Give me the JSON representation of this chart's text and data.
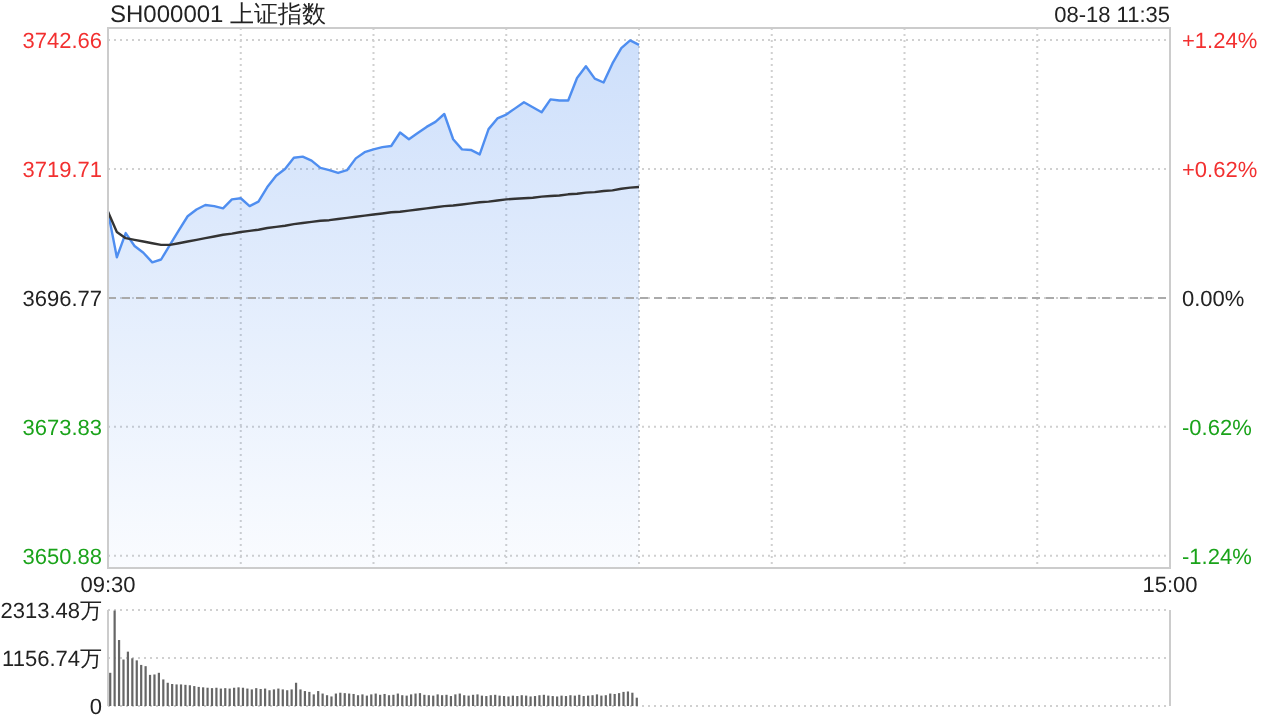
{
  "chart_data": [
    {
      "type": "area",
      "title": "SH000001 上证指数",
      "annotations": [
        "08-18 11:35"
      ],
      "categories": [
        "09:30",
        null,
        null,
        null,
        null,
        null,
        null,
        null,
        null,
        null,
        null,
        null,
        null,
        null,
        null,
        null,
        null,
        null,
        null,
        null,
        null,
        null,
        null,
        null,
        null,
        null,
        null,
        null,
        null,
        null,
        null,
        null,
        null,
        null,
        null,
        null,
        null,
        null,
        null,
        null,
        null,
        null,
        null,
        null,
        null,
        null,
        null,
        null,
        null,
        null,
        null,
        null,
        null,
        null,
        null,
        null,
        null,
        null,
        null,
        null,
        null,
        null,
        null,
        null,
        null,
        null,
        null,
        null,
        null,
        null,
        null,
        null,
        null,
        null,
        null,
        null,
        null,
        null,
        null,
        null,
        null,
        null,
        null,
        null,
        null,
        null,
        null,
        null,
        null,
        null,
        null,
        null,
        null,
        null,
        null,
        null,
        null,
        null,
        null,
        null,
        null,
        null,
        null,
        null,
        null,
        null,
        null,
        null,
        null,
        null,
        null,
        null,
        null,
        null,
        null,
        null,
        null,
        null,
        null,
        null,
        "15:00"
      ],
      "ylim": [
        3648.7,
        3744.8
      ],
      "yticks": [
        3650.88,
        3673.83,
        3696.77,
        3719.71,
        3742.66
      ],
      "y2lim": [
        -1.3,
        1.3
      ],
      "y2ticks": [
        {
          "value": -1.24,
          "label": "-1.24%"
        },
        {
          "value": -0.62,
          "label": "-0.62%"
        },
        {
          "value": 0,
          "label": "0.00%"
        },
        {
          "value": 0.62,
          "label": "+0.62%"
        },
        {
          "value": 1.24,
          "label": "+1.24%"
        }
      ],
      "grid": true,
      "marker": "none",
      "line_style": "solid",
      "ref_lines": [
        {
          "axis": "y",
          "value": 3696.77,
          "label": null,
          "color": "#aaaaaa",
          "line_style": "dashed"
        }
      ],
      "series": [
        {
          "color": "#4f8ef0",
          "values": [
            3712.1,
            3704,
            3708.3,
            3706,
            3704.8,
            3703.1,
            3703.6,
            3706.2,
            3708.8,
            3711.3,
            3712.5,
            3713.3,
            3713.1,
            3712.7,
            3714.3,
            3714.5,
            3713.1,
            3713.9,
            3716.5,
            3718.5,
            3719.7,
            3721.7,
            3721.9,
            3721.2,
            3719.9,
            3719.5,
            3719,
            3719.5,
            3721.6,
            3722.7,
            3723.2,
            3723.6,
            3723.8,
            3726.2,
            3725,
            3726.1,
            3727.2,
            3728.1,
            3729.5,
            3725,
            3723.2,
            3723.1,
            3722.3,
            3726.8,
            3728.7,
            3729.4,
            3730.5,
            3731.6,
            3730.7,
            3729.8,
            3732.1,
            3731.9,
            3731.9,
            3735.9,
            3738,
            3735.8,
            3735.1,
            3738.5,
            3741.2,
            3742.6,
            3741.8,
            null,
            null,
            null,
            null,
            null,
            null,
            null,
            null,
            null,
            null,
            null,
            null,
            null,
            null,
            null,
            null,
            null,
            null,
            null,
            null,
            null,
            null,
            null,
            null,
            null,
            null,
            null,
            null,
            null,
            null,
            null,
            null,
            null,
            null,
            null,
            null,
            null,
            null,
            null,
            null,
            null,
            null,
            null,
            null,
            null,
            null,
            null,
            null,
            null,
            null,
            null,
            null,
            null,
            null,
            null,
            null,
            null,
            null,
            null,
            null
          ]
        },
        {
          "type": "line",
          "color": "#333333",
          "values": [
            3712.1,
            3708.5,
            3707.4,
            3707.1,
            3706.8,
            3706.5,
            3706.2,
            3706.2,
            3706.5,
            3706.8,
            3707.1,
            3707.4,
            3707.7,
            3708.0,
            3708.2,
            3708.5,
            3708.7,
            3708.9,
            3709.2,
            3709.4,
            3709.6,
            3709.9,
            3710.1,
            3710.3,
            3710.5,
            3710.6,
            3710.8,
            3711.0,
            3711.2,
            3711.4,
            3711.6,
            3711.8,
            3712.0,
            3712.1,
            3712.3,
            3712.5,
            3712.7,
            3712.9,
            3713.1,
            3713.2,
            3713.4,
            3713.6,
            3713.8,
            3713.9,
            3714.1,
            3714.3,
            3714.4,
            3714.5,
            3714.6,
            3714.8,
            3714.9,
            3715.0,
            3715.2,
            3715.3,
            3715.5,
            3715.6,
            3715.8,
            3715.9,
            3716.2,
            3716.4,
            3716.5,
            null,
            null,
            null,
            null,
            null,
            null,
            null,
            null,
            null,
            null,
            null,
            null,
            null,
            null,
            null,
            null,
            null,
            null,
            null,
            null,
            null,
            null,
            null,
            null,
            null,
            null,
            null,
            null,
            null,
            null,
            null,
            null,
            null,
            null,
            null,
            null,
            null,
            null,
            null,
            null,
            null,
            null,
            null,
            null,
            null,
            null,
            null,
            null,
            null,
            null,
            null,
            null,
            null,
            null,
            null,
            null,
            null,
            null,
            null,
            null
          ]
        }
      ]
    },
    {
      "type": "bar",
      "ylim": [
        0,
        2313.48
      ],
      "yticks": [
        0,
        {
          "value": 1156.74,
          "label": "1156.74万"
        },
        {
          "value": 2313.48,
          "label": "2313.48万"
        }
      ],
      "grid": "y",
      "tick_labels": "y",
      "categories": [
        null,
        null,
        null,
        null,
        null,
        null,
        null,
        null,
        null,
        null,
        null,
        null,
        null,
        null,
        null,
        null,
        null,
        null,
        null,
        null,
        null,
        null,
        null,
        null,
        null,
        null,
        null,
        null,
        null,
        null,
        null,
        null,
        null,
        null,
        null,
        null,
        null,
        null,
        null,
        null,
        null,
        null,
        null,
        null,
        null,
        null,
        null,
        null,
        null,
        null,
        null,
        null,
        null,
        null,
        null,
        null,
        null,
        null,
        null,
        null,
        null,
        null,
        null,
        null,
        null,
        null,
        null,
        null,
        null,
        null,
        null,
        null,
        null,
        null,
        null,
        null,
        null,
        null,
        null,
        null,
        null,
        null,
        null,
        null,
        null,
        null,
        null,
        null,
        null,
        null,
        null,
        null,
        null,
        null,
        null,
        null,
        null,
        null,
        null,
        null,
        null,
        null,
        null,
        null,
        null,
        null,
        null,
        null,
        null,
        null,
        null,
        null,
        null,
        null,
        null,
        null,
        null,
        null,
        null,
        null,
        null,
        null,
        null,
        null,
        null,
        null,
        null,
        null,
        null,
        null,
        null,
        null,
        null,
        null,
        null,
        null,
        null,
        null,
        null,
        null,
        null,
        null,
        null,
        null,
        null,
        null,
        null,
        null,
        null,
        null,
        null,
        null,
        null,
        null,
        null,
        null,
        null,
        null,
        null,
        null,
        null,
        null,
        null,
        null,
        null,
        null,
        null,
        null,
        null,
        null,
        null,
        null,
        null,
        null,
        null,
        null,
        null,
        null,
        null,
        null,
        null,
        null,
        null,
        null,
        null,
        null,
        null,
        null,
        null,
        null,
        null,
        null,
        null,
        null,
        null,
        null,
        null,
        null,
        null,
        null,
        null,
        null,
        null,
        null,
        null,
        null,
        null,
        null,
        null,
        null,
        null,
        null,
        null,
        null,
        null,
        null,
        null,
        null,
        null,
        null,
        null,
        null,
        null,
        null,
        null,
        null,
        null,
        null,
        null,
        null,
        null,
        null,
        null,
        null,
        null,
        null,
        null,
        null,
        null,
        null
      ],
      "series": [
        {
          "color": "#666666",
          "values": [
            800,
            2300,
            1590,
            1120,
            1310,
            1150,
            1100,
            990,
            960,
            750,
            760,
            800,
            640,
            560,
            530,
            520,
            520,
            510,
            500,
            480,
            460,
            450,
            440,
            430,
            440,
            420,
            430,
            420,
            440,
            450,
            440,
            420,
            400,
            430,
            410,
            420,
            380,
            400,
            420,
            400,
            380,
            400,
            560,
            400,
            360,
            340,
            280,
            360,
            300,
            260,
            230,
            300,
            320,
            310,
            300,
            290,
            260,
            280,
            250,
            280,
            300,
            270,
            290,
            260,
            270,
            300,
            260,
            250,
            280,
            300,
            310,
            270,
            260,
            250,
            280,
            260,
            270,
            240,
            280,
            300,
            260,
            250,
            270,
            280,
            250,
            240,
            260,
            270,
            250,
            240,
            230,
            250,
            240,
            260,
            250,
            230,
            240,
            260,
            270,
            250,
            240,
            230,
            250,
            240,
            260,
            250,
            270,
            240,
            250,
            260,
            280,
            250,
            260,
            300,
            290,
            310,
            340,
            350,
            320,
            200,
            null,
            null,
            null,
            null,
            null,
            null,
            null,
            null,
            null,
            null,
            null,
            null,
            null,
            null,
            null,
            null,
            null,
            null,
            null,
            null,
            null,
            null,
            null,
            null,
            null,
            null,
            null,
            null,
            null,
            null,
            null,
            null,
            null,
            null,
            null,
            null,
            null,
            null,
            null,
            null,
            null,
            null,
            null,
            null,
            null,
            null,
            null,
            null,
            null,
            null,
            null,
            null,
            null,
            null,
            null,
            null,
            null,
            null,
            null,
            null,
            null,
            null,
            null,
            null,
            null,
            null,
            null,
            null,
            null,
            null,
            null,
            null,
            null,
            null,
            null,
            null,
            null,
            null,
            null,
            null,
            null,
            null,
            null,
            null,
            null,
            null,
            null,
            null,
            null,
            null,
            null,
            null,
            null,
            null,
            null,
            null,
            null,
            null,
            null,
            null,
            null,
            null,
            null,
            null,
            null,
            null,
            null,
            null,
            null,
            null,
            null,
            null,
            null,
            null,
            null,
            null,
            null,
            null,
            null,
            null
          ]
        }
      ]
    }
  ]
}
